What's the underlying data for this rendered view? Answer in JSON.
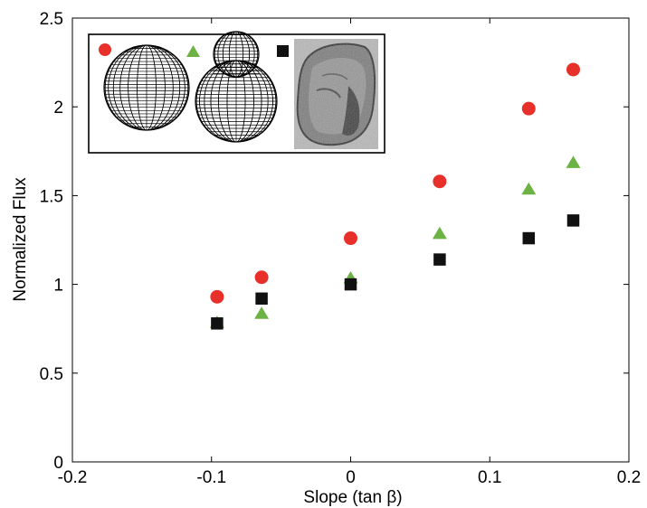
{
  "chart_data": {
    "type": "scatter",
    "title": "",
    "xlabel": "Slope (tan β)",
    "ylabel": "Normalized Flux",
    "xlim": [
      -0.2,
      0.2
    ],
    "ylim": [
      0,
      2.5
    ],
    "xticks": [
      -0.2,
      -0.1,
      0,
      0.1,
      0.2
    ],
    "xtick_labels": [
      "-0.2",
      "-0.1",
      "0",
      "0.1",
      "0.2"
    ],
    "yticks": [
      0,
      0.5,
      1,
      1.5,
      2,
      2.5
    ],
    "ytick_labels": [
      "0",
      "0.5",
      "1",
      "1.5",
      "2",
      "2.5"
    ],
    "grid": false,
    "legend": "inset at top-left with marker symbols and body-shape images",
    "series": [
      {
        "marker": "circle",
        "color": "#e8302a",
        "x": [
          -0.096,
          -0.064,
          0,
          0.064,
          0.128,
          0.16
        ],
        "y": [
          0.93,
          1.04,
          1.26,
          1.58,
          1.99,
          2.21
        ]
      },
      {
        "marker": "triangle",
        "color": "#6cb244",
        "x": [
          -0.096,
          -0.064,
          0,
          0.064,
          0.128,
          0.16
        ],
        "y": [
          0.79,
          0.84,
          1.04,
          1.29,
          1.54,
          1.69
        ]
      },
      {
        "marker": "square",
        "color": "#111111",
        "x": [
          -0.096,
          -0.064,
          0,
          0.064,
          0.128,
          0.16
        ],
        "y": [
          0.78,
          0.92,
          1.0,
          1.14,
          1.26,
          1.36
        ]
      }
    ]
  },
  "inset": {
    "images": [
      "sphere-wireframe",
      "double-sphere-wireframe",
      "organism-photo"
    ]
  }
}
